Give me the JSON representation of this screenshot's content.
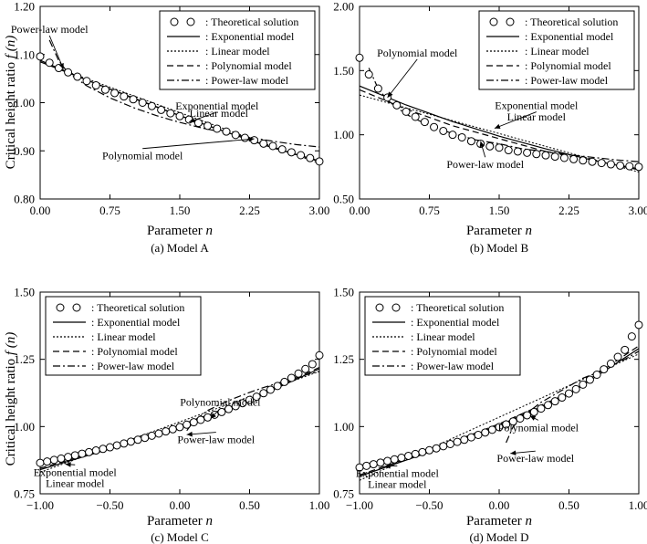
{
  "figure": {
    "ylabel": "Critical height ratio ",
    "ylabel_var": "f (n)",
    "xlabel": "Parameter ",
    "xlabel_var": "n"
  },
  "legend_labels": {
    "theory": ": Theoretical solution",
    "exponential": ": Exponential model",
    "linear": ": Linear model",
    "polynomial": ": Polynomial model",
    "power": ": Power-law model"
  },
  "chart_data": [
    {
      "id": "A",
      "type": "line",
      "caption": "(a) Model A",
      "xlim": [
        0,
        3
      ],
      "ylim": [
        0.8,
        1.2
      ],
      "xticks": [
        "0.00",
        "0.75",
        "1.50",
        "2.25",
        "3.00"
      ],
      "yticks": [
        "0.80",
        "0.90",
        "1.00",
        "1.10",
        "1.20"
      ],
      "theoretical": {
        "x": [
          0.0,
          0.1,
          0.2,
          0.3,
          0.4,
          0.5,
          0.6,
          0.7,
          0.8,
          0.9,
          1.0,
          1.1,
          1.2,
          1.3,
          1.4,
          1.5,
          1.6,
          1.7,
          1.8,
          1.9,
          2.0,
          2.1,
          2.2,
          2.3,
          2.4,
          2.5,
          2.6,
          2.7,
          2.8,
          2.9,
          3.0
        ],
        "y": [
          1.096,
          1.083,
          1.072,
          1.063,
          1.054,
          1.045,
          1.036,
          1.027,
          1.02,
          1.013,
          1.007,
          1.0,
          0.993,
          0.985,
          0.978,
          0.972,
          0.965,
          0.958,
          0.952,
          0.946,
          0.94,
          0.933,
          0.927,
          0.922,
          0.915,
          0.91,
          0.903,
          0.897,
          0.891,
          0.885,
          0.878
        ]
      },
      "series": [
        {
          "name": "Exponential model",
          "style": "solid",
          "x": [
            0.0,
            0.5,
            1.0,
            1.5,
            2.0,
            2.5,
            3.0
          ],
          "y": [
            1.085,
            1.047,
            1.01,
            0.973,
            0.939,
            0.906,
            0.879
          ]
        },
        {
          "name": "Linear model",
          "style": "dotted",
          "x": [
            0.0,
            3.0
          ],
          "y": [
            1.085,
            0.874
          ]
        },
        {
          "name": "Polynomial model",
          "style": "dashed",
          "x": [
            0.0,
            0.5,
            1.0,
            1.5,
            2.0,
            2.5,
            3.0
          ],
          "y": [
            1.088,
            1.047,
            1.009,
            0.973,
            0.939,
            0.907,
            0.878
          ]
        },
        {
          "name": "Power-law model",
          "style": "dashdot",
          "x": [
            0.1,
            0.2,
            0.3,
            0.5,
            0.75,
            1.0,
            1.25,
            1.5,
            1.75,
            2.0,
            2.25,
            2.5,
            2.75,
            3.0
          ],
          "y": [
            1.13,
            1.087,
            1.062,
            1.035,
            1.01,
            0.99,
            0.973,
            0.959,
            0.947,
            0.937,
            0.928,
            0.92,
            0.913,
            0.908
          ]
        }
      ],
      "annotations": [
        {
          "text": "Power-law model",
          "x": 0.1,
          "y": 1.145,
          "ax": 0.25,
          "ay": 1.07
        },
        {
          "text": "Exponential model",
          "x": 1.9,
          "y": 0.986,
          "ax": 1.6,
          "ay": 0.96
        },
        {
          "text": "Linear model",
          "x": 1.92,
          "y": 0.971,
          "ax": null,
          "ay": null
        },
        {
          "text": "Polynomial model",
          "x": 1.1,
          "y": 0.882,
          "ax": 2.3,
          "ay": 0.925
        }
      ]
    },
    {
      "id": "B",
      "type": "line",
      "caption": "(b) Model B",
      "xlim": [
        0,
        3
      ],
      "ylim": [
        0.5,
        2.0
      ],
      "xticks": [
        "0.00",
        "0.75",
        "1.50",
        "2.25",
        "3.00"
      ],
      "yticks": [
        "0.50",
        "1.00",
        "1.50",
        "2.00"
      ],
      "theoretical": {
        "x": [
          0.0,
          0.1,
          0.2,
          0.3,
          0.4,
          0.5,
          0.6,
          0.7,
          0.8,
          0.9,
          1.0,
          1.1,
          1.2,
          1.3,
          1.4,
          1.5,
          1.6,
          1.7,
          1.8,
          1.9,
          2.0,
          2.1,
          2.2,
          2.3,
          2.4,
          2.5,
          2.6,
          2.7,
          2.8,
          2.9,
          3.0
        ],
        "y": [
          1.6,
          1.47,
          1.36,
          1.29,
          1.23,
          1.18,
          1.14,
          1.1,
          1.06,
          1.03,
          1.0,
          0.98,
          0.95,
          0.93,
          0.91,
          0.9,
          0.88,
          0.87,
          0.86,
          0.85,
          0.84,
          0.83,
          0.82,
          0.81,
          0.8,
          0.79,
          0.78,
          0.77,
          0.76,
          0.755,
          0.75
        ]
      },
      "series": [
        {
          "name": "Exponential model",
          "style": "solid",
          "x": [
            0.0,
            0.5,
            1.0,
            1.5,
            2.0,
            2.5,
            3.0
          ],
          "y": [
            1.38,
            1.232,
            1.103,
            0.989,
            0.89,
            0.803,
            0.727
          ]
        },
        {
          "name": "Linear model",
          "style": "dotted",
          "x": [
            0.0,
            3.0
          ],
          "y": [
            1.31,
            0.71
          ]
        },
        {
          "name": "Polynomial model",
          "style": "dashed",
          "x": [
            0.0,
            0.5,
            1.0,
            1.5,
            2.0,
            2.5,
            3.0
          ],
          "y": [
            1.35,
            1.2,
            1.07,
            0.97,
            0.87,
            0.8,
            0.735
          ]
        },
        {
          "name": "Power-law model",
          "style": "dashdot",
          "x": [
            0.1,
            0.2,
            0.3,
            0.5,
            0.75,
            1.0,
            1.25,
            1.5,
            1.75,
            2.0,
            2.25,
            2.5,
            2.75,
            3.0
          ],
          "y": [
            1.52,
            1.36,
            1.27,
            1.16,
            1.07,
            1.01,
            0.96,
            0.93,
            0.89,
            0.87,
            0.845,
            0.825,
            0.805,
            0.79
          ]
        }
      ],
      "annotations": [
        {
          "text": "Polynomial model",
          "x": 0.62,
          "y": 1.61,
          "ax": 0.3,
          "ay": 1.29
        },
        {
          "text": "Exponential model",
          "x": 1.9,
          "y": 1.2,
          "ax": 1.45,
          "ay": 1.05
        },
        {
          "text": "Linear model",
          "x": 1.9,
          "y": 1.11,
          "ax": null,
          "ay": null
        },
        {
          "text": "Power-law model",
          "x": 1.35,
          "y": 0.74,
          "ax": 1.3,
          "ay": 0.95
        }
      ]
    },
    {
      "id": "C",
      "type": "line",
      "caption": "(c) Model C",
      "xlim": [
        -1,
        1
      ],
      "ylim": [
        0.75,
        1.5
      ],
      "xticks": [
        "−1.00",
        "−0.50",
        "0.00",
        "0.50",
        "1.00"
      ],
      "yticks": [
        "0.75",
        "1.00",
        "1.25",
        "1.50"
      ],
      "theoretical": {
        "x": [
          -1.0,
          -0.95,
          -0.9,
          -0.85,
          -0.8,
          -0.75,
          -0.7,
          -0.65,
          -0.6,
          -0.55,
          -0.5,
          -0.45,
          -0.4,
          -0.35,
          -0.3,
          -0.25,
          -0.2,
          -0.15,
          -0.1,
          -0.05,
          0.0,
          0.05,
          0.1,
          0.15,
          0.2,
          0.25,
          0.3,
          0.35,
          0.4,
          0.45,
          0.5,
          0.55,
          0.6,
          0.65,
          0.7,
          0.75,
          0.8,
          0.85,
          0.9,
          0.95,
          1.0
        ],
        "y": [
          0.865,
          0.87,
          0.876,
          0.881,
          0.887,
          0.893,
          0.899,
          0.905,
          0.911,
          0.917,
          0.923,
          0.93,
          0.937,
          0.944,
          0.951,
          0.958,
          0.966,
          0.974,
          0.982,
          0.99,
          0.998,
          1.007,
          1.016,
          1.025,
          1.034,
          1.044,
          1.054,
          1.065,
          1.076,
          1.087,
          1.099,
          1.111,
          1.124,
          1.137,
          1.151,
          1.166,
          1.181,
          1.197,
          1.214,
          1.232,
          1.265
        ]
      },
      "series": [
        {
          "name": "Exponential model",
          "style": "solid",
          "x": [
            -1.0,
            -0.5,
            0.0,
            0.5,
            1.0
          ],
          "y": [
            0.84,
            0.917,
            1.003,
            1.097,
            1.215
          ]
        },
        {
          "name": "Linear model",
          "style": "dotted",
          "x": [
            -1.0,
            1.0
          ],
          "y": [
            0.83,
            1.205
          ]
        },
        {
          "name": "Polynomial model",
          "style": "dashed",
          "x": [
            -1.0,
            -0.5,
            0.0,
            0.5,
            1.0
          ],
          "y": [
            0.845,
            0.92,
            1.005,
            1.1,
            1.22
          ]
        },
        {
          "name": "Power-law model",
          "style": "dashdot",
          "x": [
            0.05,
            0.1,
            0.2,
            0.3,
            0.4,
            0.5,
            0.6,
            0.7,
            0.8,
            0.9,
            1.0
          ],
          "y": [
            0.985,
            1.02,
            1.06,
            1.085,
            1.107,
            1.127,
            1.145,
            1.161,
            1.177,
            1.192,
            1.205
          ]
        }
      ],
      "annotations": [
        {
          "text": "Polynomial model",
          "x": 0.29,
          "y": 1.077,
          "ax": 0.22,
          "ay": 1.03
        },
        {
          "text": "Power-law model",
          "x": 0.26,
          "y": 0.938,
          "ax": 0.05,
          "ay": 0.97
        },
        {
          "text": "Exponential model",
          "x": -0.75,
          "y": 0.817,
          "ax": -0.82,
          "ay": 0.86
        },
        {
          "text": "Linear model",
          "x": -0.75,
          "y": 0.775,
          "ax": null,
          "ay": null
        }
      ]
    },
    {
      "id": "D",
      "type": "line",
      "caption": "(d) Model D",
      "xlim": [
        -1,
        1
      ],
      "ylim": [
        0.75,
        1.5
      ],
      "xticks": [
        "−1.00",
        "−0.50",
        "0.00",
        "0.50",
        "1.00"
      ],
      "yticks": [
        "0.75",
        "1.00",
        "1.25",
        "1.50"
      ],
      "theoretical": {
        "x": [
          -1.0,
          -0.95,
          -0.9,
          -0.85,
          -0.8,
          -0.75,
          -0.7,
          -0.65,
          -0.6,
          -0.55,
          -0.5,
          -0.45,
          -0.4,
          -0.35,
          -0.3,
          -0.25,
          -0.2,
          -0.15,
          -0.1,
          -0.05,
          0.0,
          0.05,
          0.1,
          0.15,
          0.2,
          0.25,
          0.3,
          0.35,
          0.4,
          0.45,
          0.5,
          0.55,
          0.6,
          0.65,
          0.7,
          0.75,
          0.8,
          0.85,
          0.9,
          0.95,
          1.0
        ],
        "y": [
          0.848,
          0.854,
          0.86,
          0.866,
          0.872,
          0.878,
          0.884,
          0.891,
          0.898,
          0.905,
          0.912,
          0.919,
          0.927,
          0.935,
          0.943,
          0.951,
          0.96,
          0.969,
          0.978,
          0.988,
          0.998,
          1.008,
          1.019,
          1.03,
          1.042,
          1.054,
          1.067,
          1.08,
          1.094,
          1.108,
          1.123,
          1.139,
          1.156,
          1.174,
          1.193,
          1.213,
          1.234,
          1.259,
          1.285,
          1.335,
          1.378
        ]
      },
      "series": [
        {
          "name": "Exponential model",
          "style": "solid",
          "x": [
            -1.0,
            -0.5,
            0.0,
            0.5,
            1.0
          ],
          "y": [
            0.815,
            0.905,
            1.005,
            1.12,
            1.29
          ]
        },
        {
          "name": "Linear model",
          "style": "dotted",
          "x": [
            -1.0,
            1.0
          ],
          "y": [
            0.8,
            1.27
          ]
        },
        {
          "name": "Polynomial model",
          "style": "dashed",
          "x": [
            -1.0,
            -0.5,
            0.0,
            0.5,
            1.0
          ],
          "y": [
            0.82,
            0.91,
            1.01,
            1.125,
            1.3
          ]
        },
        {
          "name": "Power-law model",
          "style": "dashdot",
          "x": [
            0.05,
            0.1,
            0.2,
            0.3,
            0.4,
            0.5,
            0.6,
            0.7,
            0.8,
            0.9,
            1.0
          ],
          "y": [
            0.94,
            1.0,
            1.05,
            1.09,
            1.12,
            1.15,
            1.18,
            1.2,
            1.23,
            1.25,
            1.28
          ]
        }
      ],
      "annotations": [
        {
          "text": "Polynomial model",
          "x": 0.28,
          "y": 0.983,
          "ax": 0.22,
          "ay": 1.04
        },
        {
          "text": "Power-law model",
          "x": 0.26,
          "y": 0.868,
          "ax": 0.08,
          "ay": 0.9
        },
        {
          "text": "Exponential model",
          "x": -0.73,
          "y": 0.813,
          "ax": -0.82,
          "ay": 0.852
        },
        {
          "text": "Linear model",
          "x": -0.73,
          "y": 0.772,
          "ax": null,
          "ay": null
        }
      ]
    }
  ]
}
